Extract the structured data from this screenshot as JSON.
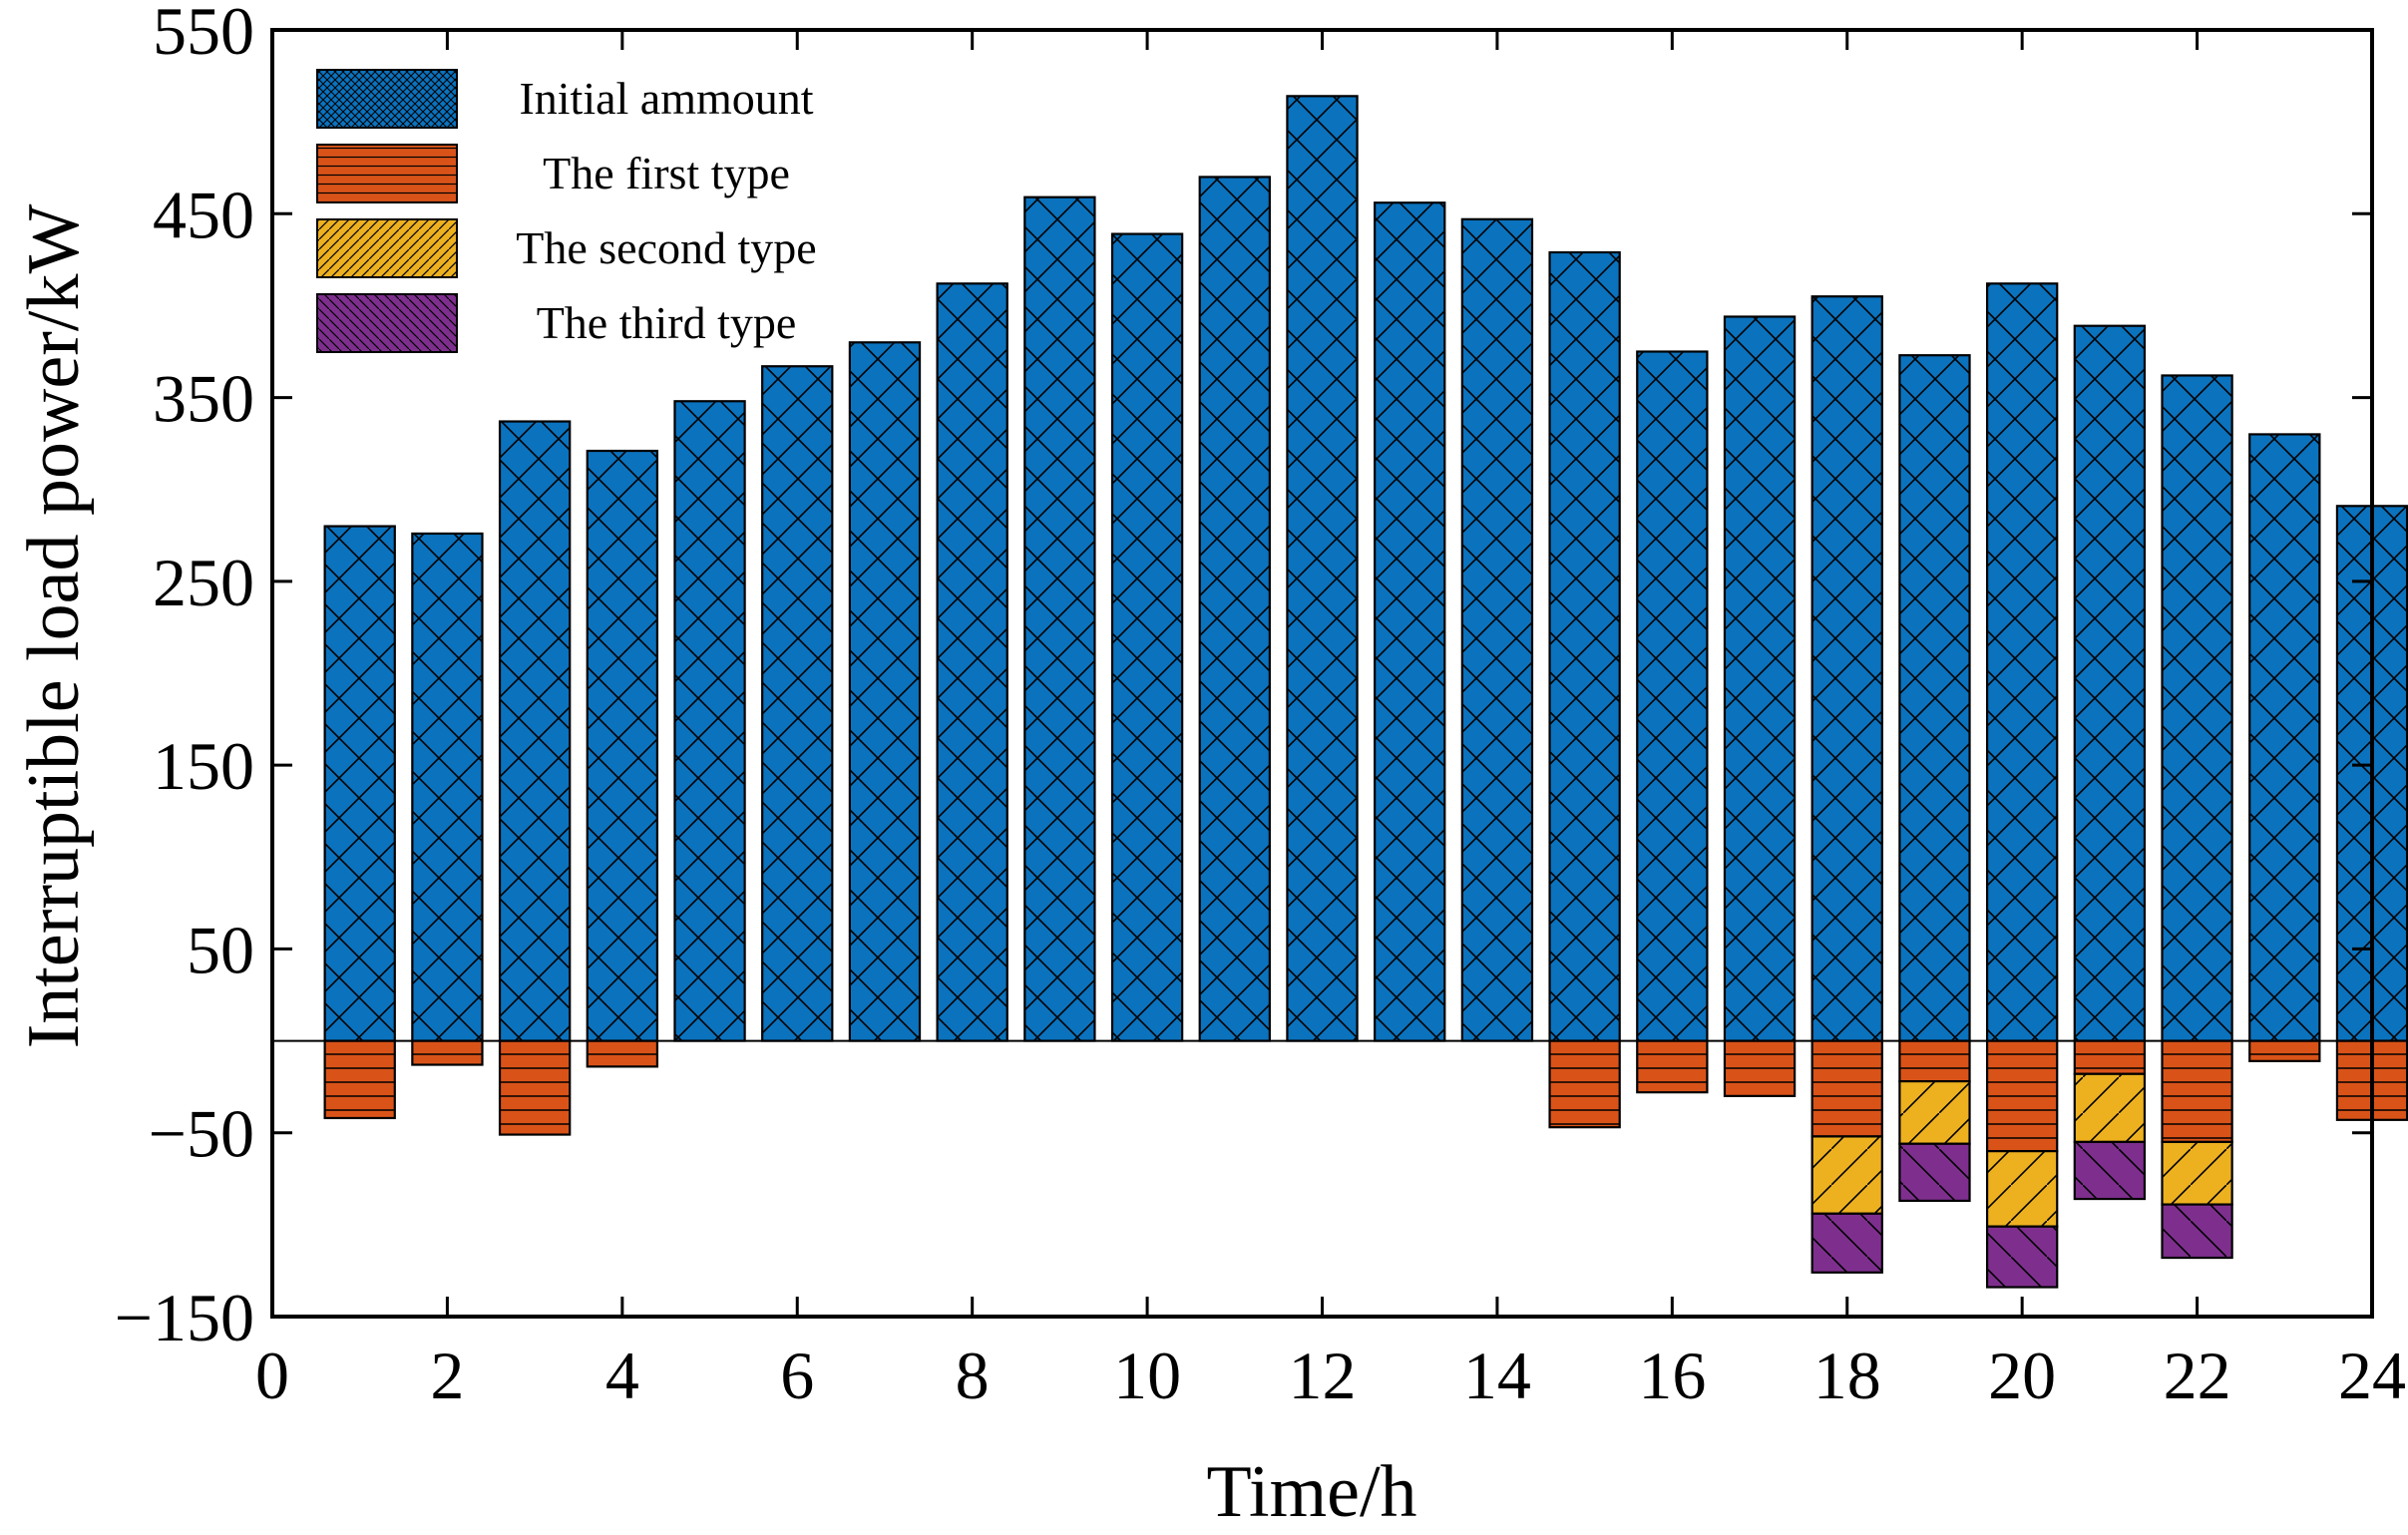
{
  "chart_data": {
    "type": "bar",
    "title": "",
    "xlabel": "Time/h",
    "ylabel": "Interruptible load power/kW",
    "xlim": [
      0,
      24
    ],
    "ylim": [
      -150,
      550
    ],
    "xticks": [
      0,
      2,
      4,
      6,
      8,
      10,
      12,
      14,
      16,
      18,
      20,
      22,
      24
    ],
    "xtick_labels": [
      "0",
      "2",
      "4",
      "6",
      "8",
      "10",
      "12",
      "14",
      "16",
      "18",
      "20",
      "22",
      "24"
    ],
    "yticks": [
      -150,
      -50,
      50,
      150,
      250,
      350,
      450,
      550
    ],
    "ytick_labels": [
      "−150",
      "−50",
      "50",
      "150",
      "250",
      "350",
      "450",
      "550"
    ],
    "grid": false,
    "legend_position": "top-left",
    "categories": [
      1,
      2,
      3,
      4,
      5,
      6,
      7,
      8,
      9,
      10,
      11,
      12,
      13,
      14,
      15,
      16,
      17,
      18,
      19,
      20,
      21,
      22,
      23,
      24
    ],
    "series": [
      {
        "name": "Initial ammount",
        "color": "#0b72bd",
        "pattern": "crosshatch",
        "values": [
          280,
          276,
          337,
          321,
          348,
          367,
          380,
          412,
          459,
          439,
          470,
          514,
          456,
          447,
          429,
          375,
          394,
          405,
          373,
          412,
          389,
          362,
          330,
          291
        ]
      },
      {
        "name": "The first type",
        "color": "#d95319",
        "pattern": "horizontal",
        "values": [
          -42,
          -13,
          -51,
          -14,
          0,
          0,
          0,
          0,
          0,
          0,
          0,
          0,
          0,
          0,
          -47,
          -28,
          -30,
          -52,
          -22,
          -60,
          -18,
          -55,
          -11,
          -43
        ]
      },
      {
        "name": "The second type",
        "color": "#edb120",
        "pattern": "forward-diagonal",
        "values": [
          0,
          0,
          0,
          0,
          0,
          0,
          0,
          0,
          0,
          0,
          0,
          0,
          0,
          0,
          0,
          0,
          0,
          -42,
          -34,
          -41,
          -37,
          -34,
          0,
          0
        ]
      },
      {
        "name": "The third type",
        "color": "#7e2f8e",
        "pattern": "back-diagonal",
        "values": [
          0,
          0,
          0,
          0,
          0,
          0,
          0,
          0,
          0,
          0,
          0,
          0,
          0,
          0,
          0,
          0,
          0,
          -32,
          -31,
          -33,
          -31,
          -29,
          0,
          0
        ]
      }
    ]
  }
}
